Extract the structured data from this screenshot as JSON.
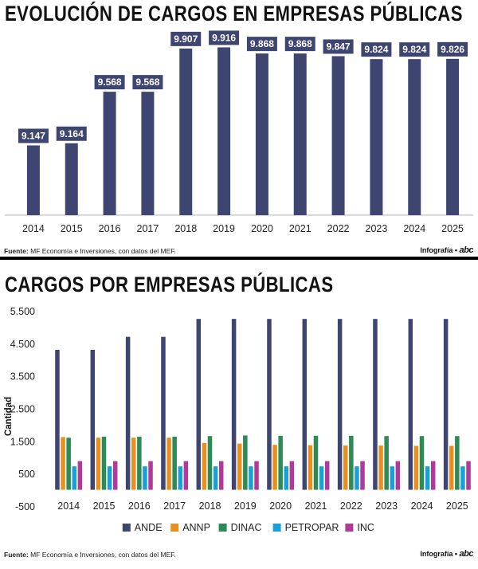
{
  "panel1": {
    "title": "EVOLUCIÓN DE CARGOS EN EMPRESAS PÚBLICAS",
    "source_label": "Fuente:",
    "source_text": " MF Economía e Inversiones, con datos del MEF.",
    "credit_label": "Infografía •",
    "credit_logo": "abc"
  },
  "panel2": {
    "title": "CARGOS POR EMPRESAS PÚBLICAS",
    "source_label": "Fuente:",
    "source_text": " MF Economía e Inversiones, con datos del MEF.",
    "credit_label": "Infografía •",
    "credit_logo": "abc"
  },
  "chart_data": [
    {
      "type": "bar",
      "title": "EVOLUCIÓN DE CARGOS EN EMPRESAS PÚBLICAS",
      "categories": [
        "2014",
        "2015",
        "2016",
        "2017",
        "2018",
        "2019",
        "2020",
        "2021",
        "2022",
        "2023",
        "2024",
        "2025"
      ],
      "values": [
        9147,
        9164,
        9568,
        9568,
        9907,
        9916,
        9868,
        9868,
        9847,
        9824,
        9824,
        9826
      ],
      "data_labels": [
        "9.147",
        "9.164",
        "9.568",
        "9.568",
        "9.907",
        "9.916",
        "9.868",
        "9.868",
        "9.847",
        "9.824",
        "9.824",
        "9.826"
      ],
      "ylim": [
        8600,
        10000
      ],
      "color": "#3d4570",
      "grid": false
    },
    {
      "type": "bar",
      "title": "CARGOS POR EMPRESAS PÚBLICAS",
      "ylabel": "Cantidad",
      "categories": [
        "2014",
        "2015",
        "2016",
        "2017",
        "2018",
        "2019",
        "2020",
        "2021",
        "2022",
        "2023",
        "2024",
        "2025"
      ],
      "yticks": [
        5500,
        4500,
        3500,
        2500,
        1500,
        500,
        -500
      ],
      "ytick_labels": [
        "5.500",
        "4.500",
        "3.500",
        "2.500",
        "1.500",
        "500",
        "-500"
      ],
      "ylim": [
        -500,
        5500
      ],
      "grid": false,
      "legend_position": "bottom",
      "series": [
        {
          "name": "ANDE",
          "color": "#3d4570",
          "values": [
            4300,
            4300,
            4700,
            4700,
            5250,
            5250,
            5250,
            5250,
            5250,
            5250,
            5250,
            5250
          ]
        },
        {
          "name": "ANNP",
          "color": "#e8901f",
          "values": [
            1620,
            1600,
            1600,
            1600,
            1440,
            1420,
            1380,
            1370,
            1360,
            1360,
            1350,
            1350
          ]
        },
        {
          "name": "DINAC",
          "color": "#2e8b57",
          "values": [
            1600,
            1630,
            1630,
            1630,
            1650,
            1670,
            1660,
            1660,
            1660,
            1650,
            1650,
            1650
          ]
        },
        {
          "name": "PETROPAR",
          "color": "#1aa0d8",
          "values": [
            720,
            720,
            720,
            720,
            720,
            720,
            720,
            720,
            720,
            720,
            720,
            720
          ]
        },
        {
          "name": "INC",
          "color": "#b03a9a",
          "values": [
            880,
            880,
            880,
            880,
            880,
            880,
            880,
            880,
            880,
            880,
            880,
            880
          ]
        }
      ]
    }
  ]
}
